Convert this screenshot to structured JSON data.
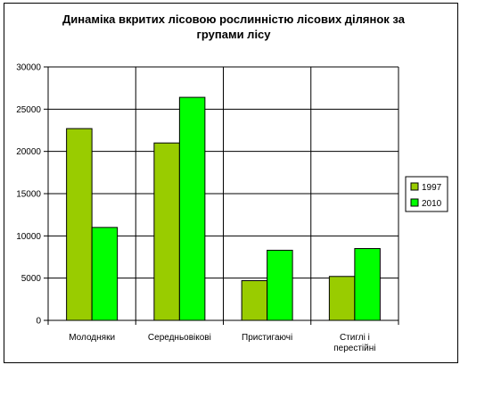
{
  "chart_data": {
    "type": "bar",
    "title_lines": [
      "Динаміка вкритих лісовою рослинністю лісових ділянок за",
      "групами лісу"
    ],
    "categories": [
      [
        "Молодняки"
      ],
      [
        "Середньовікові"
      ],
      [
        "Пристигаючі"
      ],
      [
        "Стиглі і",
        "перестійні"
      ]
    ],
    "series": [
      {
        "name": "1997",
        "color": "#99cc00",
        "values": [
          22700,
          21000,
          4700,
          5200
        ]
      },
      {
        "name": "2010",
        "color": "#00ff00",
        "values": [
          11000,
          26400,
          8300,
          8500
        ]
      }
    ],
    "ylim": [
      0,
      30000
    ],
    "yticks": [
      0,
      5000,
      10000,
      15000,
      20000,
      25000,
      30000
    ],
    "grid": true,
    "legend": "right"
  }
}
